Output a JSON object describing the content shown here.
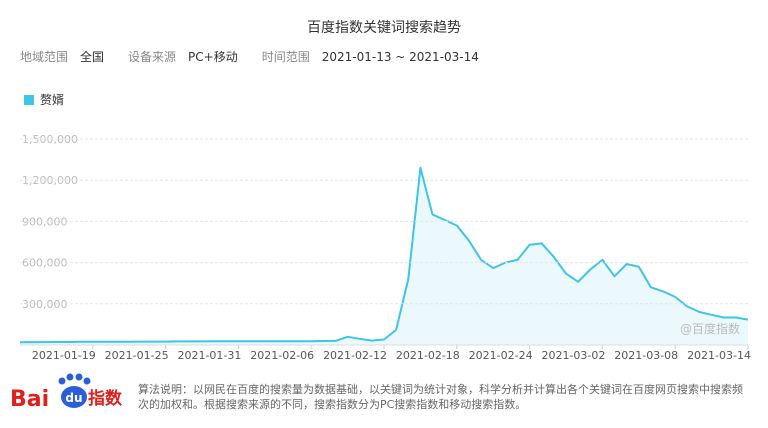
{
  "chart_data": {
    "type": "line",
    "title": "百度指数关键词搜索趋势",
    "filters": [
      {
        "label": "地域范围",
        "value": "全国"
      },
      {
        "label": "设备来源",
        "value": "PC+移动"
      },
      {
        "label": "时间范围",
        "value": "2021-01-13 ~ 2021-03-14"
      }
    ],
    "x": [
      "2021-01-13",
      "2021-01-14",
      "2021-01-15",
      "2021-01-16",
      "2021-01-17",
      "2021-01-18",
      "2021-01-19",
      "2021-01-20",
      "2021-01-21",
      "2021-01-22",
      "2021-01-23",
      "2021-01-24",
      "2021-01-25",
      "2021-01-26",
      "2021-01-27",
      "2021-01-28",
      "2021-01-29",
      "2021-01-30",
      "2021-01-31",
      "2021-02-01",
      "2021-02-02",
      "2021-02-03",
      "2021-02-04",
      "2021-02-05",
      "2021-02-06",
      "2021-02-07",
      "2021-02-08",
      "2021-02-09",
      "2021-02-10",
      "2021-02-11",
      "2021-02-12",
      "2021-02-13",
      "2021-02-14",
      "2021-02-15",
      "2021-02-16",
      "2021-02-17",
      "2021-02-18",
      "2021-02-19",
      "2021-02-20",
      "2021-02-21",
      "2021-02-22",
      "2021-02-23",
      "2021-02-24",
      "2021-02-25",
      "2021-02-26",
      "2021-02-27",
      "2021-02-28",
      "2021-03-01",
      "2021-03-02",
      "2021-03-03",
      "2021-03-04",
      "2021-03-05",
      "2021-03-06",
      "2021-03-07",
      "2021-03-08",
      "2021-03-09",
      "2021-03-10",
      "2021-03-11",
      "2021-03-12",
      "2021-03-13",
      "2021-03-14"
    ],
    "xticks": [
      "2021-01-19",
      "2021-01-25",
      "2021-01-31",
      "2021-02-06",
      "2021-02-12",
      "2021-02-18",
      "2021-02-24",
      "2021-03-02",
      "2021-03-08",
      "2021-03-14"
    ],
    "series": [
      {
        "name": "赘婿",
        "color": "#3ec5e9",
        "values": [
          20000,
          21000,
          21000,
          22000,
          22000,
          23000,
          23000,
          24000,
          24000,
          24000,
          25000,
          25000,
          25000,
          26000,
          26000,
          26000,
          27000,
          27000,
          28000,
          27000,
          27000,
          27000,
          28000,
          28000,
          28000,
          29000,
          30000,
          60000,
          45000,
          32000,
          40000,
          110000,
          480000,
          1290000,
          950000,
          910000,
          870000,
          760000,
          620000,
          560000,
          600000,
          620000,
          730000,
          740000,
          640000,
          520000,
          460000,
          550000,
          620000,
          500000,
          590000,
          570000,
          420000,
          390000,
          350000,
          280000,
          240000,
          220000,
          200000,
          200000,
          185000
        ]
      }
    ],
    "ylim": [
      0,
      1500000
    ],
    "yticks": [
      {
        "value": 300000,
        "label": "300,000"
      },
      {
        "value": 600000,
        "label": "600,000"
      },
      {
        "value": 900000,
        "label": "900,000"
      },
      {
        "value": 1200000,
        "label": "1,200,000"
      },
      {
        "value": 1500000,
        "label": "1,500,000"
      }
    ],
    "grid": true,
    "watermark": "@百度指数",
    "logo": {
      "bai": "Bai",
      "du": "du",
      "index": "指数"
    },
    "note": "算法说明：以网民在百度的搜索量为数据基础，以关键词为统计对象，科学分析并计算出各个关键词在百度网页搜索中搜索频次的加权和。根据搜索来源的不同，搜索指数分为PC搜索指数和移动搜索指数。"
  }
}
